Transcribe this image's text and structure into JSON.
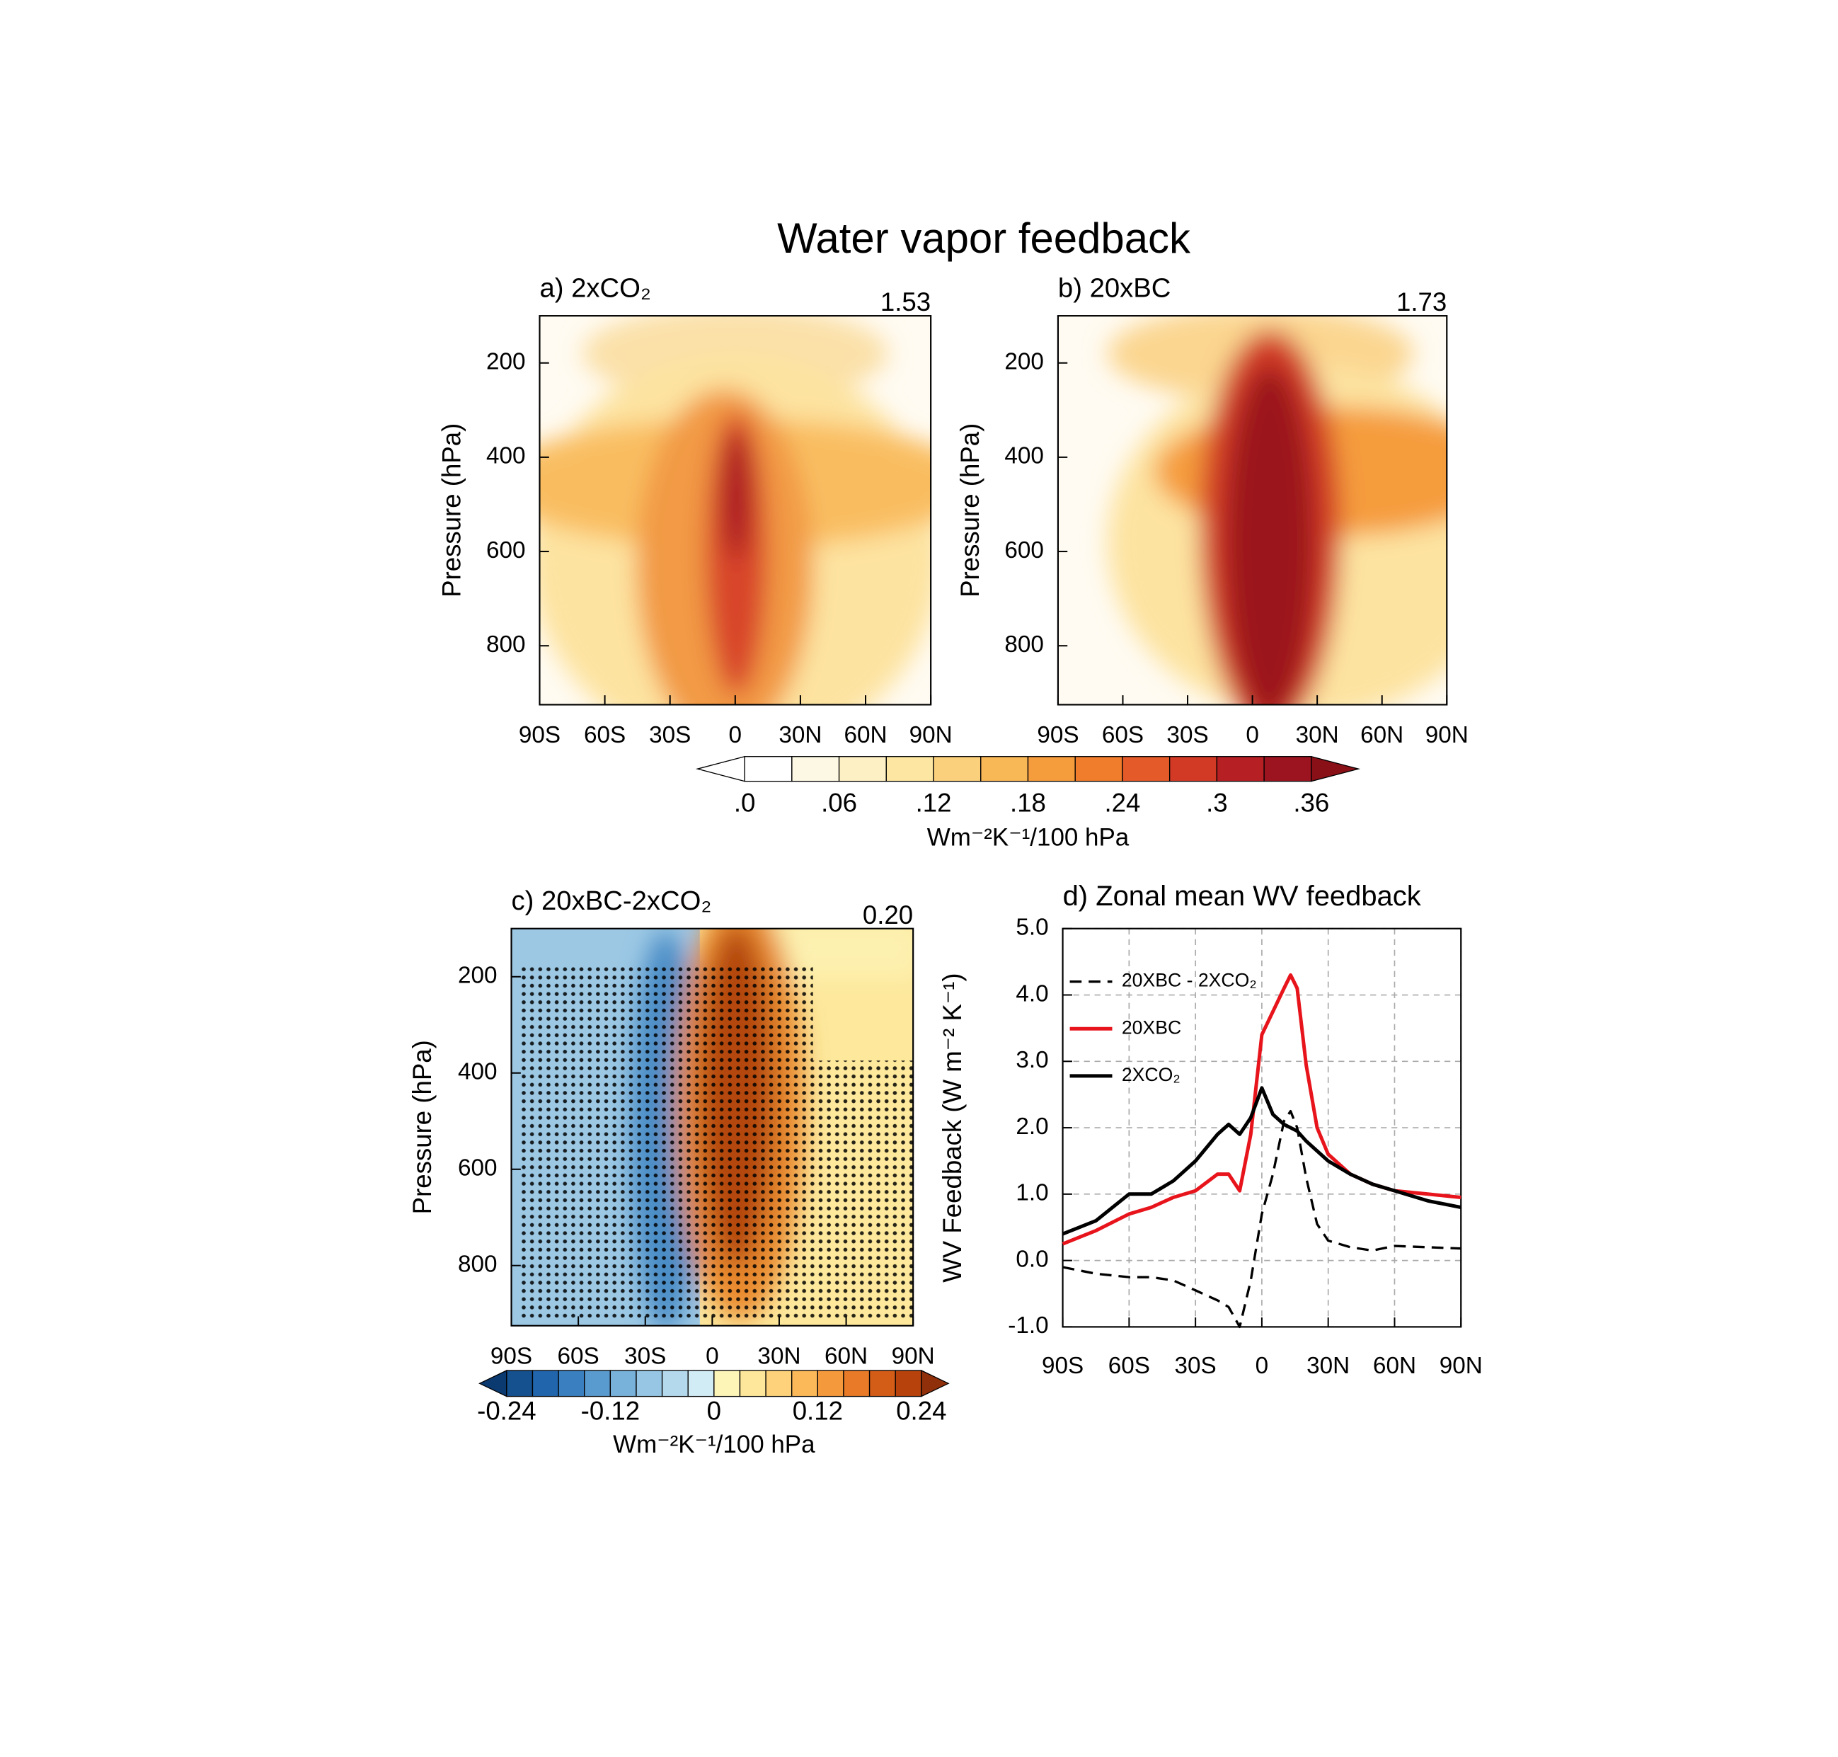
{
  "title": "Water vapor feedback",
  "chart_data": [
    {
      "type": "contour",
      "title": "a) 2xCO₂",
      "annotation": "1.53",
      "ylabel": "Pressure (hPa)",
      "xlim": [
        -90,
        90
      ],
      "xticks": [
        {
          "value": -90,
          "label": "90S"
        },
        {
          "value": -60,
          "label": "60S"
        },
        {
          "value": -30,
          "label": "30S"
        },
        0,
        {
          "value": 30,
          "label": "30N"
        },
        {
          "value": 60,
          "label": "60N"
        },
        {
          "value": 90,
          "label": "90N"
        }
      ],
      "ylim": [
        925,
        100
      ],
      "yticks": [
        200,
        400,
        600,
        800
      ]
    },
    {
      "type": "contour",
      "title": "b) 20xBC",
      "annotation": "1.73",
      "ylabel": "Pressure (hPa)",
      "xlim": [
        -90,
        90
      ],
      "xticks": [
        {
          "value": -90,
          "label": "90S"
        },
        {
          "value": -60,
          "label": "60S"
        },
        {
          "value": -30,
          "label": "30S"
        },
        0,
        {
          "value": 30,
          "label": "30N"
        },
        {
          "value": 60,
          "label": "60N"
        },
        {
          "value": 90,
          "label": "90N"
        }
      ],
      "ylim": [
        925,
        100
      ],
      "yticks": [
        200,
        400,
        600,
        800
      ]
    },
    {
      "type": "colorbar",
      "label": "Wm⁻²K⁻¹/100 hPa",
      "lim": [
        0,
        0.36
      ],
      "ticks": [
        {
          "value": 0,
          "label": ".0"
        },
        {
          "value": 0.06,
          "label": ".06"
        },
        {
          "value": 0.12,
          "label": ".12"
        },
        {
          "value": 0.18,
          "label": ".18"
        },
        {
          "value": 0.24,
          "label": ".24"
        },
        {
          "value": 0.3,
          "label": ".3"
        },
        {
          "value": 0.36,
          "label": ".36"
        }
      ],
      "under_color": "#ffffff",
      "over_color": "#8a1018",
      "colors": [
        "#ffffff",
        "#fdf8e4",
        "#fdf0c4",
        "#fde6a2",
        "#fbd07c",
        "#f9b856",
        "#f59c3c",
        "#ef7d2c",
        "#e45a28",
        "#d23a26",
        "#b61f24",
        "#9b1420"
      ]
    },
    {
      "type": "contour",
      "title": "c) 20xBC-2xCO₂",
      "annotation": "0.20",
      "ylabel": "Pressure (hPa)",
      "xlim": [
        -90,
        90
      ],
      "xticks": [
        {
          "value": -90,
          "label": "90S"
        },
        {
          "value": -60,
          "label": "60S"
        },
        {
          "value": -30,
          "label": "30S"
        },
        0,
        {
          "value": 30,
          "label": "30N"
        },
        {
          "value": 60,
          "label": "60N"
        },
        {
          "value": 90,
          "label": "90N"
        }
      ],
      "ylim": [
        925,
        100
      ],
      "yticks": [
        200,
        400,
        600,
        800
      ]
    },
    {
      "type": "colorbar",
      "label": "Wm⁻²K⁻¹/100 hPa",
      "lim": [
        -0.24,
        0.24
      ],
      "ticks": [
        -0.24,
        -0.12,
        0,
        0.12,
        0.24
      ],
      "under_color": "#0a3a70",
      "over_color": "#8f300b",
      "colors": [
        "#15508f",
        "#2166ac",
        "#3a7fbf",
        "#5a9bcf",
        "#78b1da",
        "#96c6e3",
        "#b4d9ec",
        "#d2ecf5",
        "#fdf4b8",
        "#fee79a",
        "#fdd27a",
        "#fcb95a",
        "#f59a3c",
        "#e87a28",
        "#d35c17",
        "#b8420c"
      ]
    },
    {
      "type": "line",
      "title": "d) Zonal mean WV feedback",
      "ylabel": "WV Feedback (W m⁻² K⁻¹)",
      "grid": true,
      "xlim": [
        -90,
        90
      ],
      "xticks": [
        {
          "value": -90,
          "label": "90S"
        },
        {
          "value": -60,
          "label": "60S"
        },
        {
          "value": -30,
          "label": "30S"
        },
        0,
        {
          "value": 30,
          "label": "30N"
        },
        {
          "value": 60,
          "label": "60N"
        },
        {
          "value": 90,
          "label": "90N"
        }
      ],
      "ylim": [
        -1,
        5
      ],
      "yticks": [
        {
          "value": -1,
          "label": "-1.0"
        },
        {
          "value": 0,
          "label": "0.0"
        },
        {
          "value": 1,
          "label": "1.0"
        },
        {
          "value": 2,
          "label": "2.0"
        },
        {
          "value": 3,
          "label": "3.0"
        },
        {
          "value": 4,
          "label": "4.0"
        },
        {
          "value": 5,
          "label": "5.0"
        }
      ],
      "x": [
        -90,
        -75,
        -60,
        -50,
        -40,
        -30,
        -20,
        -15,
        -10,
        -5,
        0,
        5,
        10,
        13,
        16,
        20,
        25,
        30,
        40,
        50,
        60,
        75,
        90
      ],
      "series": [
        {
          "name": "20XBC - 2XCO₂",
          "color": "#000000",
          "dashed": true,
          "values": [
            -0.1,
            -0.2,
            -0.25,
            -0.25,
            -0.3,
            -0.45,
            -0.6,
            -0.7,
            -1.0,
            -0.3,
            0.7,
            1.3,
            2.1,
            2.25,
            2.0,
            1.25,
            0.55,
            0.3,
            0.2,
            0.15,
            0.22,
            0.2,
            0.18
          ]
        },
        {
          "name": "20XBC",
          "color": "#e8141c",
          "dashed": false,
          "values": [
            0.25,
            0.45,
            0.7,
            0.8,
            0.95,
            1.05,
            1.3,
            1.3,
            1.05,
            1.9,
            3.4,
            3.75,
            4.1,
            4.3,
            4.1,
            2.95,
            2.0,
            1.6,
            1.3,
            1.15,
            1.05,
            1.0,
            0.95
          ]
        },
        {
          "name": "2XCO₂",
          "color": "#000000",
          "dashed": false,
          "values": [
            0.4,
            0.6,
            1.0,
            1.0,
            1.2,
            1.5,
            1.9,
            2.05,
            1.9,
            2.15,
            2.6,
            2.2,
            2.05,
            2.0,
            1.95,
            1.8,
            1.65,
            1.5,
            1.3,
            1.15,
            1.05,
            0.9,
            0.8
          ]
        }
      ]
    }
  ]
}
